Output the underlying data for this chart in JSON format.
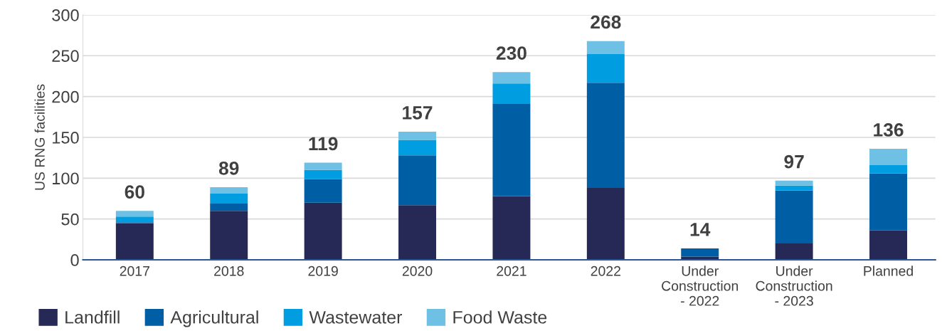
{
  "chart_data": {
    "type": "bar",
    "stacked": true,
    "ylabel": "US RNG facilities",
    "categories": [
      "2017",
      "2018",
      "2019",
      "2020",
      "2021",
      "2022",
      "Under\nConstruction\n- 2022",
      "Under\nConstruction\n- 2023",
      "Planned"
    ],
    "series": [
      {
        "name": "Landfill",
        "color": "#262955",
        "values": [
          45,
          60,
          70,
          67,
          78,
          88,
          4,
          20,
          36
        ]
      },
      {
        "name": "Agricultural",
        "color": "#005ea5",
        "values": [
          1,
          9,
          29,
          61,
          113,
          129,
          10,
          65,
          70
        ]
      },
      {
        "name": "Wastewater",
        "color": "#009ee0",
        "values": [
          7,
          12,
          11,
          19,
          25,
          35,
          0,
          6,
          10
        ]
      },
      {
        "name": "Food Waste",
        "color": "#6fc0e5",
        "values": [
          7,
          8,
          9,
          10,
          14,
          16,
          0,
          6,
          20
        ]
      }
    ],
    "totals": [
      "60",
      "89",
      "119",
      "157",
      "230",
      "268",
      "14",
      "97",
      "136"
    ],
    "ylim": [
      0,
      300
    ],
    "yticks": [
      0,
      50,
      100,
      150,
      200,
      250,
      300
    ],
    "grid": "y",
    "legend": "bottom"
  }
}
